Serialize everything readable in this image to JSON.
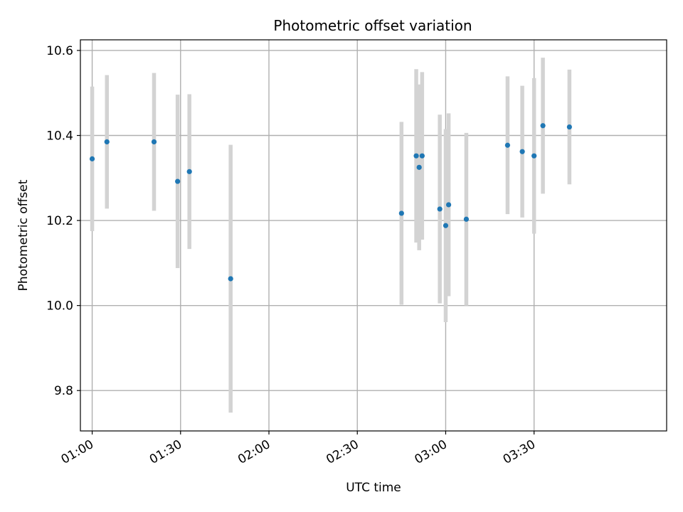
{
  "chart_data": {
    "type": "scatter",
    "title": "Photometric offset variation",
    "xlabel": "UTC time",
    "ylabel": "Photometric offset",
    "x_unit": "HH:MM",
    "xlim": [
      "00:56",
      "04:15"
    ],
    "ylim": [
      9.705,
      10.625
    ],
    "xticks": [
      "01:00",
      "01:30",
      "02:00",
      "02:30",
      "03:00",
      "03:30"
    ],
    "yticks": [
      9.8,
      10.0,
      10.2,
      10.4,
      10.6
    ],
    "ytick_labels": [
      "9.8",
      "10.0",
      "10.2",
      "10.4",
      "10.6"
    ],
    "grid": true,
    "marker_color": "#1f77b4",
    "errorbar_color": "#d3d3d3",
    "points": [
      {
        "x": "01:00",
        "y": 10.345,
        "err": 0.17
      },
      {
        "x": "01:05",
        "y": 10.385,
        "err": 0.157
      },
      {
        "x": "01:21",
        "y": 10.385,
        "err": 0.162
      },
      {
        "x": "01:29",
        "y": 10.292,
        "err": 0.204
      },
      {
        "x": "01:33",
        "y": 10.315,
        "err": 0.182
      },
      {
        "x": "01:47",
        "y": 10.063,
        "err": 0.315
      },
      {
        "x": "02:45",
        "y": 10.217,
        "err": 0.215
      },
      {
        "x": "02:50",
        "y": 10.352,
        "err": 0.204
      },
      {
        "x": "02:51",
        "y": 10.325,
        "err": 0.195
      },
      {
        "x": "02:52",
        "y": 10.352,
        "err": 0.197
      },
      {
        "x": "02:58",
        "y": 10.227,
        "err": 0.222
      },
      {
        "x": "03:00",
        "y": 10.188,
        "err": 0.227
      },
      {
        "x": "03:01",
        "y": 10.237,
        "err": 0.215
      },
      {
        "x": "03:07",
        "y": 10.203,
        "err": 0.203
      },
      {
        "x": "03:21",
        "y": 10.377,
        "err": 0.162
      },
      {
        "x": "03:26",
        "y": 10.362,
        "err": 0.155
      },
      {
        "x": "03:30",
        "y": 10.352,
        "err": 0.183
      },
      {
        "x": "03:33",
        "y": 10.423,
        "err": 0.16
      },
      {
        "x": "03:42",
        "y": 10.42,
        "err": 0.135
      }
    ]
  }
}
